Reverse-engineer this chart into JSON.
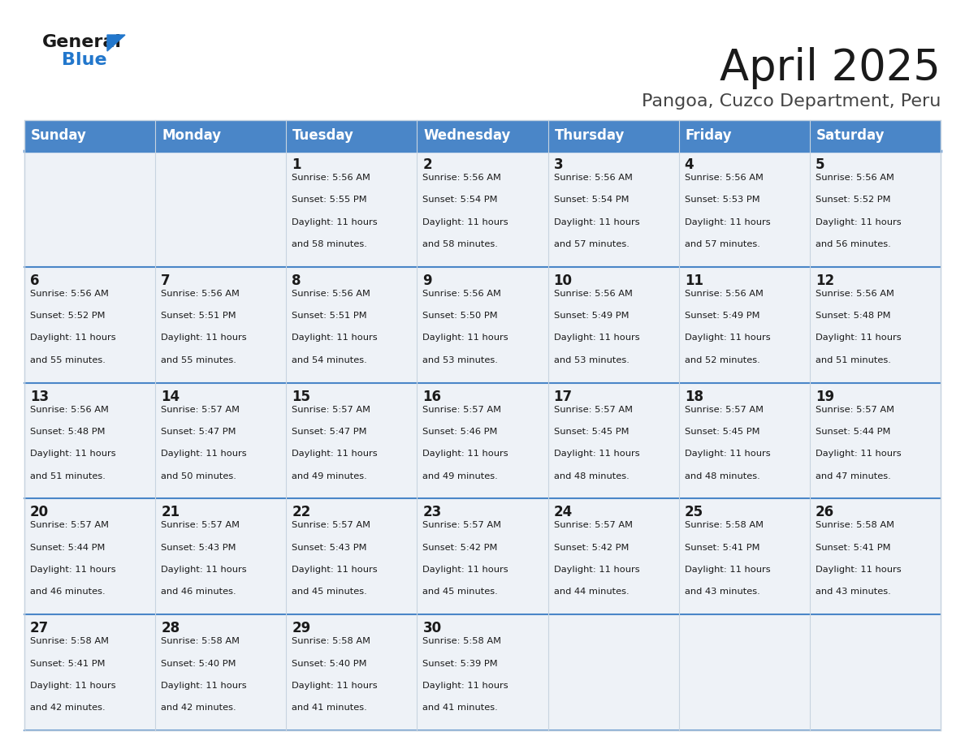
{
  "title": "April 2025",
  "subtitle": "Pangoa, Cuzco Department, Peru",
  "header_color": "#4a86c8",
  "header_text_color": "#ffffff",
  "cell_bg_color": "#eef2f7",
  "border_color": "#4a86c8",
  "row_divider_color": "#4a86c8",
  "day_headers": [
    "Sunday",
    "Monday",
    "Tuesday",
    "Wednesday",
    "Thursday",
    "Friday",
    "Saturday"
  ],
  "days": [
    {
      "day": 1,
      "col": 2,
      "row": 0,
      "sunrise": "5:56 AM",
      "sunset": "5:55 PM",
      "daylight": "11 hours and 58 minutes."
    },
    {
      "day": 2,
      "col": 3,
      "row": 0,
      "sunrise": "5:56 AM",
      "sunset": "5:54 PM",
      "daylight": "11 hours and 58 minutes."
    },
    {
      "day": 3,
      "col": 4,
      "row": 0,
      "sunrise": "5:56 AM",
      "sunset": "5:54 PM",
      "daylight": "11 hours and 57 minutes."
    },
    {
      "day": 4,
      "col": 5,
      "row": 0,
      "sunrise": "5:56 AM",
      "sunset": "5:53 PM",
      "daylight": "11 hours and 57 minutes."
    },
    {
      "day": 5,
      "col": 6,
      "row": 0,
      "sunrise": "5:56 AM",
      "sunset": "5:52 PM",
      "daylight": "11 hours and 56 minutes."
    },
    {
      "day": 6,
      "col": 0,
      "row": 1,
      "sunrise": "5:56 AM",
      "sunset": "5:52 PM",
      "daylight": "11 hours and 55 minutes."
    },
    {
      "day": 7,
      "col": 1,
      "row": 1,
      "sunrise": "5:56 AM",
      "sunset": "5:51 PM",
      "daylight": "11 hours and 55 minutes."
    },
    {
      "day": 8,
      "col": 2,
      "row": 1,
      "sunrise": "5:56 AM",
      "sunset": "5:51 PM",
      "daylight": "11 hours and 54 minutes."
    },
    {
      "day": 9,
      "col": 3,
      "row": 1,
      "sunrise": "5:56 AM",
      "sunset": "5:50 PM",
      "daylight": "11 hours and 53 minutes."
    },
    {
      "day": 10,
      "col": 4,
      "row": 1,
      "sunrise": "5:56 AM",
      "sunset": "5:49 PM",
      "daylight": "11 hours and 53 minutes."
    },
    {
      "day": 11,
      "col": 5,
      "row": 1,
      "sunrise": "5:56 AM",
      "sunset": "5:49 PM",
      "daylight": "11 hours and 52 minutes."
    },
    {
      "day": 12,
      "col": 6,
      "row": 1,
      "sunrise": "5:56 AM",
      "sunset": "5:48 PM",
      "daylight": "11 hours and 51 minutes."
    },
    {
      "day": 13,
      "col": 0,
      "row": 2,
      "sunrise": "5:56 AM",
      "sunset": "5:48 PM",
      "daylight": "11 hours and 51 minutes."
    },
    {
      "day": 14,
      "col": 1,
      "row": 2,
      "sunrise": "5:57 AM",
      "sunset": "5:47 PM",
      "daylight": "11 hours and 50 minutes."
    },
    {
      "day": 15,
      "col": 2,
      "row": 2,
      "sunrise": "5:57 AM",
      "sunset": "5:47 PM",
      "daylight": "11 hours and 49 minutes."
    },
    {
      "day": 16,
      "col": 3,
      "row": 2,
      "sunrise": "5:57 AM",
      "sunset": "5:46 PM",
      "daylight": "11 hours and 49 minutes."
    },
    {
      "day": 17,
      "col": 4,
      "row": 2,
      "sunrise": "5:57 AM",
      "sunset": "5:45 PM",
      "daylight": "11 hours and 48 minutes."
    },
    {
      "day": 18,
      "col": 5,
      "row": 2,
      "sunrise": "5:57 AM",
      "sunset": "5:45 PM",
      "daylight": "11 hours and 48 minutes."
    },
    {
      "day": 19,
      "col": 6,
      "row": 2,
      "sunrise": "5:57 AM",
      "sunset": "5:44 PM",
      "daylight": "11 hours and 47 minutes."
    },
    {
      "day": 20,
      "col": 0,
      "row": 3,
      "sunrise": "5:57 AM",
      "sunset": "5:44 PM",
      "daylight": "11 hours and 46 minutes."
    },
    {
      "day": 21,
      "col": 1,
      "row": 3,
      "sunrise": "5:57 AM",
      "sunset": "5:43 PM",
      "daylight": "11 hours and 46 minutes."
    },
    {
      "day": 22,
      "col": 2,
      "row": 3,
      "sunrise": "5:57 AM",
      "sunset": "5:43 PM",
      "daylight": "11 hours and 45 minutes."
    },
    {
      "day": 23,
      "col": 3,
      "row": 3,
      "sunrise": "5:57 AM",
      "sunset": "5:42 PM",
      "daylight": "11 hours and 45 minutes."
    },
    {
      "day": 24,
      "col": 4,
      "row": 3,
      "sunrise": "5:57 AM",
      "sunset": "5:42 PM",
      "daylight": "11 hours and 44 minutes."
    },
    {
      "day": 25,
      "col": 5,
      "row": 3,
      "sunrise": "5:58 AM",
      "sunset": "5:41 PM",
      "daylight": "11 hours and 43 minutes."
    },
    {
      "day": 26,
      "col": 6,
      "row": 3,
      "sunrise": "5:58 AM",
      "sunset": "5:41 PM",
      "daylight": "11 hours and 43 minutes."
    },
    {
      "day": 27,
      "col": 0,
      "row": 4,
      "sunrise": "5:58 AM",
      "sunset": "5:41 PM",
      "daylight": "11 hours and 42 minutes."
    },
    {
      "day": 28,
      "col": 1,
      "row": 4,
      "sunrise": "5:58 AM",
      "sunset": "5:40 PM",
      "daylight": "11 hours and 42 minutes."
    },
    {
      "day": 29,
      "col": 2,
      "row": 4,
      "sunrise": "5:58 AM",
      "sunset": "5:40 PM",
      "daylight": "11 hours and 41 minutes."
    },
    {
      "day": 30,
      "col": 3,
      "row": 4,
      "sunrise": "5:58 AM",
      "sunset": "5:39 PM",
      "daylight": "11 hours and 41 minutes."
    }
  ],
  "num_rows": 5,
  "num_cols": 7,
  "logo_color_general": "#1a1a1a",
  "logo_color_blue": "#2277cc",
  "logo_triangle_color": "#2277cc"
}
